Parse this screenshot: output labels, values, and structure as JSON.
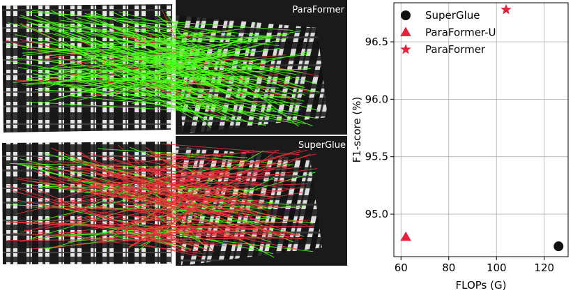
{
  "panels": [
    {
      "label": "ParaFormer",
      "match_mix": {
        "green": 0.85,
        "red": 0.15
      }
    },
    {
      "label": "SuperGlue",
      "match_mix": {
        "green": 0.3,
        "red": 0.7
      }
    }
  ],
  "colors": {
    "green_match": "#4cff1a",
    "red_match": "#e8303a",
    "marker_red": "#e8203c",
    "marker_black": "#111111",
    "grid": "#b0b0b0",
    "panel_dark": "#1a1a1a"
  },
  "chart_data": {
    "type": "scatter",
    "title": "",
    "xlabel": "FLOPs (G)",
    "ylabel": "F1-score (%)",
    "xlim": [
      57,
      130
    ],
    "ylim": [
      94.63,
      96.84
    ],
    "xticks": [
      60,
      80,
      100,
      120
    ],
    "yticks": [
      95.0,
      95.5,
      96.0,
      96.5
    ],
    "ytick_labels": [
      "95.0",
      "95.5",
      "96.0",
      "96.5"
    ],
    "grid": true,
    "legend_position": "top-left",
    "series": [
      {
        "name": "SuperGlue",
        "marker": "circle",
        "color": "#111111",
        "x": [
          126
        ],
        "y": [
          94.72
        ]
      },
      {
        "name": "ParaFormer-U",
        "marker": "triangle",
        "color": "#e8203c",
        "x": [
          62
        ],
        "y": [
          94.8
        ]
      },
      {
        "name": "ParaFormer",
        "marker": "star",
        "color": "#e8203c",
        "x": [
          104
        ],
        "y": [
          96.78
        ]
      }
    ]
  }
}
